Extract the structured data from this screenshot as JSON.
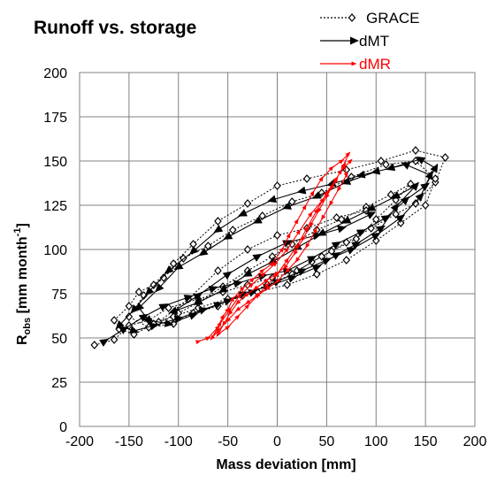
{
  "chart_data": {
    "type": "line",
    "title": "Runoff vs. storage",
    "xlabel": "Mass deviation   [mm]",
    "ylabel": {
      "base": "R",
      "sub": "obs",
      "unit_pre": "[mm month",
      "unit_sup": "-1",
      "unit_post": "]"
    },
    "xlim": [
      -200,
      200
    ],
    "ylim": [
      0,
      200
    ],
    "xticks": [
      -200,
      -150,
      -100,
      -50,
      0,
      50,
      100,
      150,
      200
    ],
    "yticks": [
      0,
      25,
      50,
      75,
      100,
      125,
      150,
      175,
      200
    ],
    "grid": true,
    "legend_position": "top-right",
    "series": [
      {
        "name": "GRACE",
        "color": "#000000",
        "style": "dotted",
        "marker": "diamond",
        "points": [
          [
            -185,
            46
          ],
          [
            -165,
            49
          ],
          [
            -150,
            57
          ],
          [
            -130,
            60
          ],
          [
            -110,
            67
          ],
          [
            -80,
            72
          ],
          [
            -55,
            76
          ],
          [
            -30,
            80
          ],
          [
            -5,
            84
          ],
          [
            20,
            88
          ],
          [
            45,
            96
          ],
          [
            70,
            104
          ],
          [
            95,
            112
          ],
          [
            120,
            120
          ],
          [
            140,
            126
          ],
          [
            160,
            138
          ],
          [
            170,
            152
          ],
          [
            140,
            156
          ],
          [
            105,
            150
          ],
          [
            70,
            145
          ],
          [
            30,
            140
          ],
          [
            0,
            136
          ],
          [
            -30,
            126
          ],
          [
            -60,
            116
          ],
          [
            -85,
            103
          ],
          [
            -105,
            92
          ],
          [
            -125,
            80
          ],
          [
            -140,
            76
          ],
          [
            -150,
            68
          ],
          [
            -165,
            60
          ],
          [
            -160,
            55
          ],
          [
            -145,
            52
          ],
          [
            -125,
            58
          ],
          [
            -105,
            62
          ],
          [
            -80,
            67
          ],
          [
            -50,
            72
          ],
          [
            -20,
            76
          ],
          [
            10,
            80
          ],
          [
            40,
            86
          ],
          [
            70,
            94
          ],
          [
            100,
            105
          ],
          [
            125,
            115
          ],
          [
            150,
            125
          ],
          [
            160,
            140
          ],
          [
            140,
            150
          ],
          [
            110,
            148
          ],
          [
            75,
            141
          ],
          [
            45,
            132
          ],
          [
            15,
            127
          ],
          [
            -15,
            119
          ],
          [
            -45,
            111
          ],
          [
            -70,
            102
          ],
          [
            -95,
            95
          ],
          [
            -115,
            84
          ],
          [
            -135,
            74
          ],
          [
            -150,
            62
          ],
          [
            -130,
            56
          ],
          [
            -105,
            58
          ],
          [
            -85,
            64
          ],
          [
            -60,
            68
          ],
          [
            -35,
            74
          ],
          [
            -10,
            80
          ],
          [
            15,
            86
          ],
          [
            35,
            93
          ],
          [
            55,
            99
          ],
          [
            80,
            106
          ],
          [
            100,
            117
          ],
          [
            120,
            128
          ],
          [
            135,
            137
          ],
          [
            115,
            131
          ],
          [
            90,
            124
          ],
          [
            65,
            117
          ],
          [
            40,
            111
          ],
          [
            15,
            103
          ],
          [
            -5,
            96
          ],
          [
            -30,
            88
          ],
          [
            -55,
            79
          ],
          [
            -80,
            70
          ],
          [
            -100,
            64
          ],
          [
            -120,
            59
          ],
          [
            -90,
            72
          ],
          [
            -60,
            88
          ],
          [
            -30,
            100
          ],
          [
            0,
            108
          ],
          [
            30,
            112
          ],
          [
            60,
            118
          ],
          [
            90,
            122
          ]
        ]
      },
      {
        "name": "dMT",
        "color": "#000000",
        "style": "solid",
        "marker": "triangle",
        "points": [
          [
            -175,
            48
          ],
          [
            -155,
            55
          ],
          [
            -135,
            62
          ],
          [
            -115,
            68
          ],
          [
            -90,
            73
          ],
          [
            -65,
            78
          ],
          [
            -40,
            81
          ],
          [
            -15,
            85
          ],
          [
            10,
            88
          ],
          [
            35,
            95
          ],
          [
            60,
            103
          ],
          [
            85,
            110
          ],
          [
            110,
            118
          ],
          [
            130,
            128
          ],
          [
            150,
            136
          ],
          [
            160,
            146
          ],
          [
            145,
            151
          ],
          [
            115,
            146
          ],
          [
            85,
            142
          ],
          [
            55,
            137
          ],
          [
            25,
            133
          ],
          [
            -5,
            128
          ],
          [
            -35,
            120
          ],
          [
            -60,
            111
          ],
          [
            -85,
            99
          ],
          [
            -110,
            88
          ],
          [
            -130,
            76
          ],
          [
            -145,
            66
          ],
          [
            -160,
            57
          ],
          [
            -145,
            54
          ],
          [
            -125,
            57
          ],
          [
            -100,
            61
          ],
          [
            -75,
            66
          ],
          [
            -50,
            71
          ],
          [
            -25,
            76
          ],
          [
            0,
            82
          ],
          [
            25,
            88
          ],
          [
            50,
            94
          ],
          [
            75,
            100
          ],
          [
            100,
            108
          ],
          [
            125,
            118
          ],
          [
            145,
            130
          ],
          [
            155,
            142
          ],
          [
            130,
            148
          ],
          [
            100,
            144
          ],
          [
            70,
            138
          ],
          [
            40,
            130
          ],
          [
            10,
            124
          ],
          [
            -20,
            116
          ],
          [
            -50,
            107
          ],
          [
            -75,
            98
          ],
          [
            -100,
            90
          ],
          [
            -120,
            78
          ],
          [
            -140,
            67
          ],
          [
            -130,
            60
          ],
          [
            -110,
            58
          ],
          [
            -85,
            63
          ],
          [
            -60,
            69
          ],
          [
            -35,
            75
          ],
          [
            -10,
            79
          ],
          [
            15,
            84
          ],
          [
            40,
            90
          ],
          [
            60,
            97
          ],
          [
            80,
            103
          ],
          [
            105,
            112
          ],
          [
            120,
            124
          ],
          [
            140,
            136
          ],
          [
            120,
            130
          ],
          [
            95,
            123
          ],
          [
            70,
            116
          ],
          [
            45,
            109
          ],
          [
            20,
            101
          ],
          [
            -5,
            93
          ],
          [
            -30,
            86
          ],
          [
            -55,
            77
          ],
          [
            -80,
            70
          ],
          [
            -105,
            65
          ],
          [
            -80,
            74
          ],
          [
            -50,
            86
          ],
          [
            -20,
            96
          ],
          [
            10,
            104
          ],
          [
            40,
            108
          ],
          [
            65,
            112
          ],
          [
            95,
            120
          ]
        ]
      },
      {
        "name": "dMR",
        "color": "#ff0000",
        "style": "solid",
        "marker": "small-arrow",
        "points": [
          [
            -80,
            48
          ],
          [
            -70,
            50
          ],
          [
            -60,
            56
          ],
          [
            -55,
            62
          ],
          [
            -50,
            66
          ],
          [
            -45,
            72
          ],
          [
            -35,
            78
          ],
          [
            -25,
            83
          ],
          [
            -15,
            88
          ],
          [
            -5,
            92
          ],
          [
            5,
            100
          ],
          [
            12,
            108
          ],
          [
            20,
            116
          ],
          [
            28,
            124
          ],
          [
            36,
            132
          ],
          [
            45,
            140
          ],
          [
            55,
            146
          ],
          [
            65,
            150
          ],
          [
            72,
            154
          ],
          [
            66,
            146
          ],
          [
            58,
            138
          ],
          [
            50,
            130
          ],
          [
            42,
            122
          ],
          [
            34,
            114
          ],
          [
            26,
            106
          ],
          [
            18,
            98
          ],
          [
            8,
            90
          ],
          [
            -2,
            86
          ],
          [
            -12,
            82
          ],
          [
            -22,
            78
          ],
          [
            -32,
            74
          ],
          [
            -40,
            70
          ],
          [
            -48,
            64
          ],
          [
            -54,
            58
          ],
          [
            -60,
            52
          ],
          [
            -50,
            56
          ],
          [
            -40,
            62
          ],
          [
            -30,
            68
          ],
          [
            -20,
            74
          ],
          [
            -10,
            80
          ],
          [
            0,
            86
          ],
          [
            10,
            94
          ],
          [
            20,
            102
          ],
          [
            30,
            112
          ],
          [
            40,
            122
          ],
          [
            50,
            132
          ],
          [
            60,
            140
          ],
          [
            68,
            148
          ],
          [
            70,
            142
          ],
          [
            62,
            134
          ],
          [
            54,
            126
          ],
          [
            46,
            118
          ],
          [
            38,
            110
          ],
          [
            30,
            102
          ],
          [
            20,
            94
          ],
          [
            10,
            88
          ],
          [
            0,
            82
          ],
          [
            -10,
            78
          ],
          [
            -20,
            74
          ],
          [
            -30,
            70
          ],
          [
            -40,
            66
          ],
          [
            -50,
            60
          ],
          [
            -60,
            54
          ],
          [
            -66,
            50
          ],
          [
            -58,
            58
          ],
          [
            -48,
            66
          ],
          [
            -38,
            74
          ],
          [
            -26,
            80
          ],
          [
            -14,
            86
          ],
          [
            -2,
            92
          ],
          [
            10,
            100
          ],
          [
            22,
            110
          ],
          [
            34,
            120
          ],
          [
            46,
            128
          ],
          [
            56,
            136
          ],
          [
            64,
            144
          ],
          [
            74,
            150
          ]
        ]
      }
    ]
  }
}
